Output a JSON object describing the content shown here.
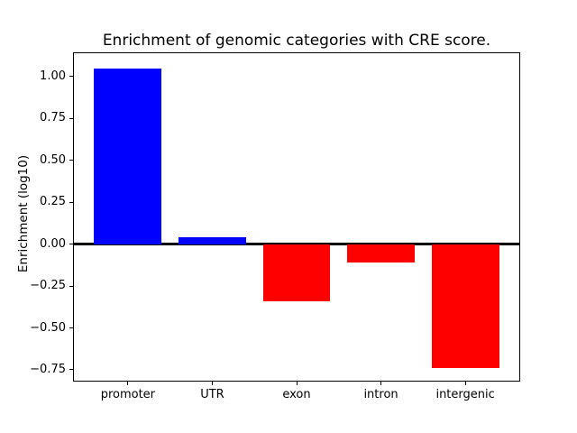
{
  "chart_data": {
    "type": "bar",
    "title": "Enrichment of genomic categories with CRE score.",
    "xlabel": "",
    "ylabel": "Enrichment (log10)",
    "categories": [
      "promoter",
      "UTR",
      "exon",
      "intron",
      "intergenic"
    ],
    "values": [
      1.05,
      0.04,
      -0.34,
      -0.11,
      -0.74
    ],
    "bar_colors": [
      "#0000ff",
      "#0000ff",
      "#ff0000",
      "#ff0000",
      "#ff0000"
    ],
    "positive_color": "#0000ff",
    "negative_color": "#ff0000",
    "bar_width": 0.8,
    "ylim": [
      -0.815,
      1.14
    ],
    "xlim": [
      -0.64,
      4.64
    ],
    "yticks": [
      {
        "value": 1.0,
        "label": "1.00"
      },
      {
        "value": 0.75,
        "label": "0.75"
      },
      {
        "value": 0.5,
        "label": "0.50"
      },
      {
        "value": 0.25,
        "label": "0.25"
      },
      {
        "value": 0.0,
        "label": "0.00"
      },
      {
        "value": -0.25,
        "label": "−0.25"
      },
      {
        "value": -0.5,
        "label": "−0.50"
      },
      {
        "value": -0.75,
        "label": "−0.75"
      }
    ],
    "grid": false,
    "legend": null,
    "zero_line": {
      "show": true,
      "color": "#000000",
      "thickness_px": 3
    },
    "axis_color": "#000000",
    "background_color": "#ffffff"
  }
}
